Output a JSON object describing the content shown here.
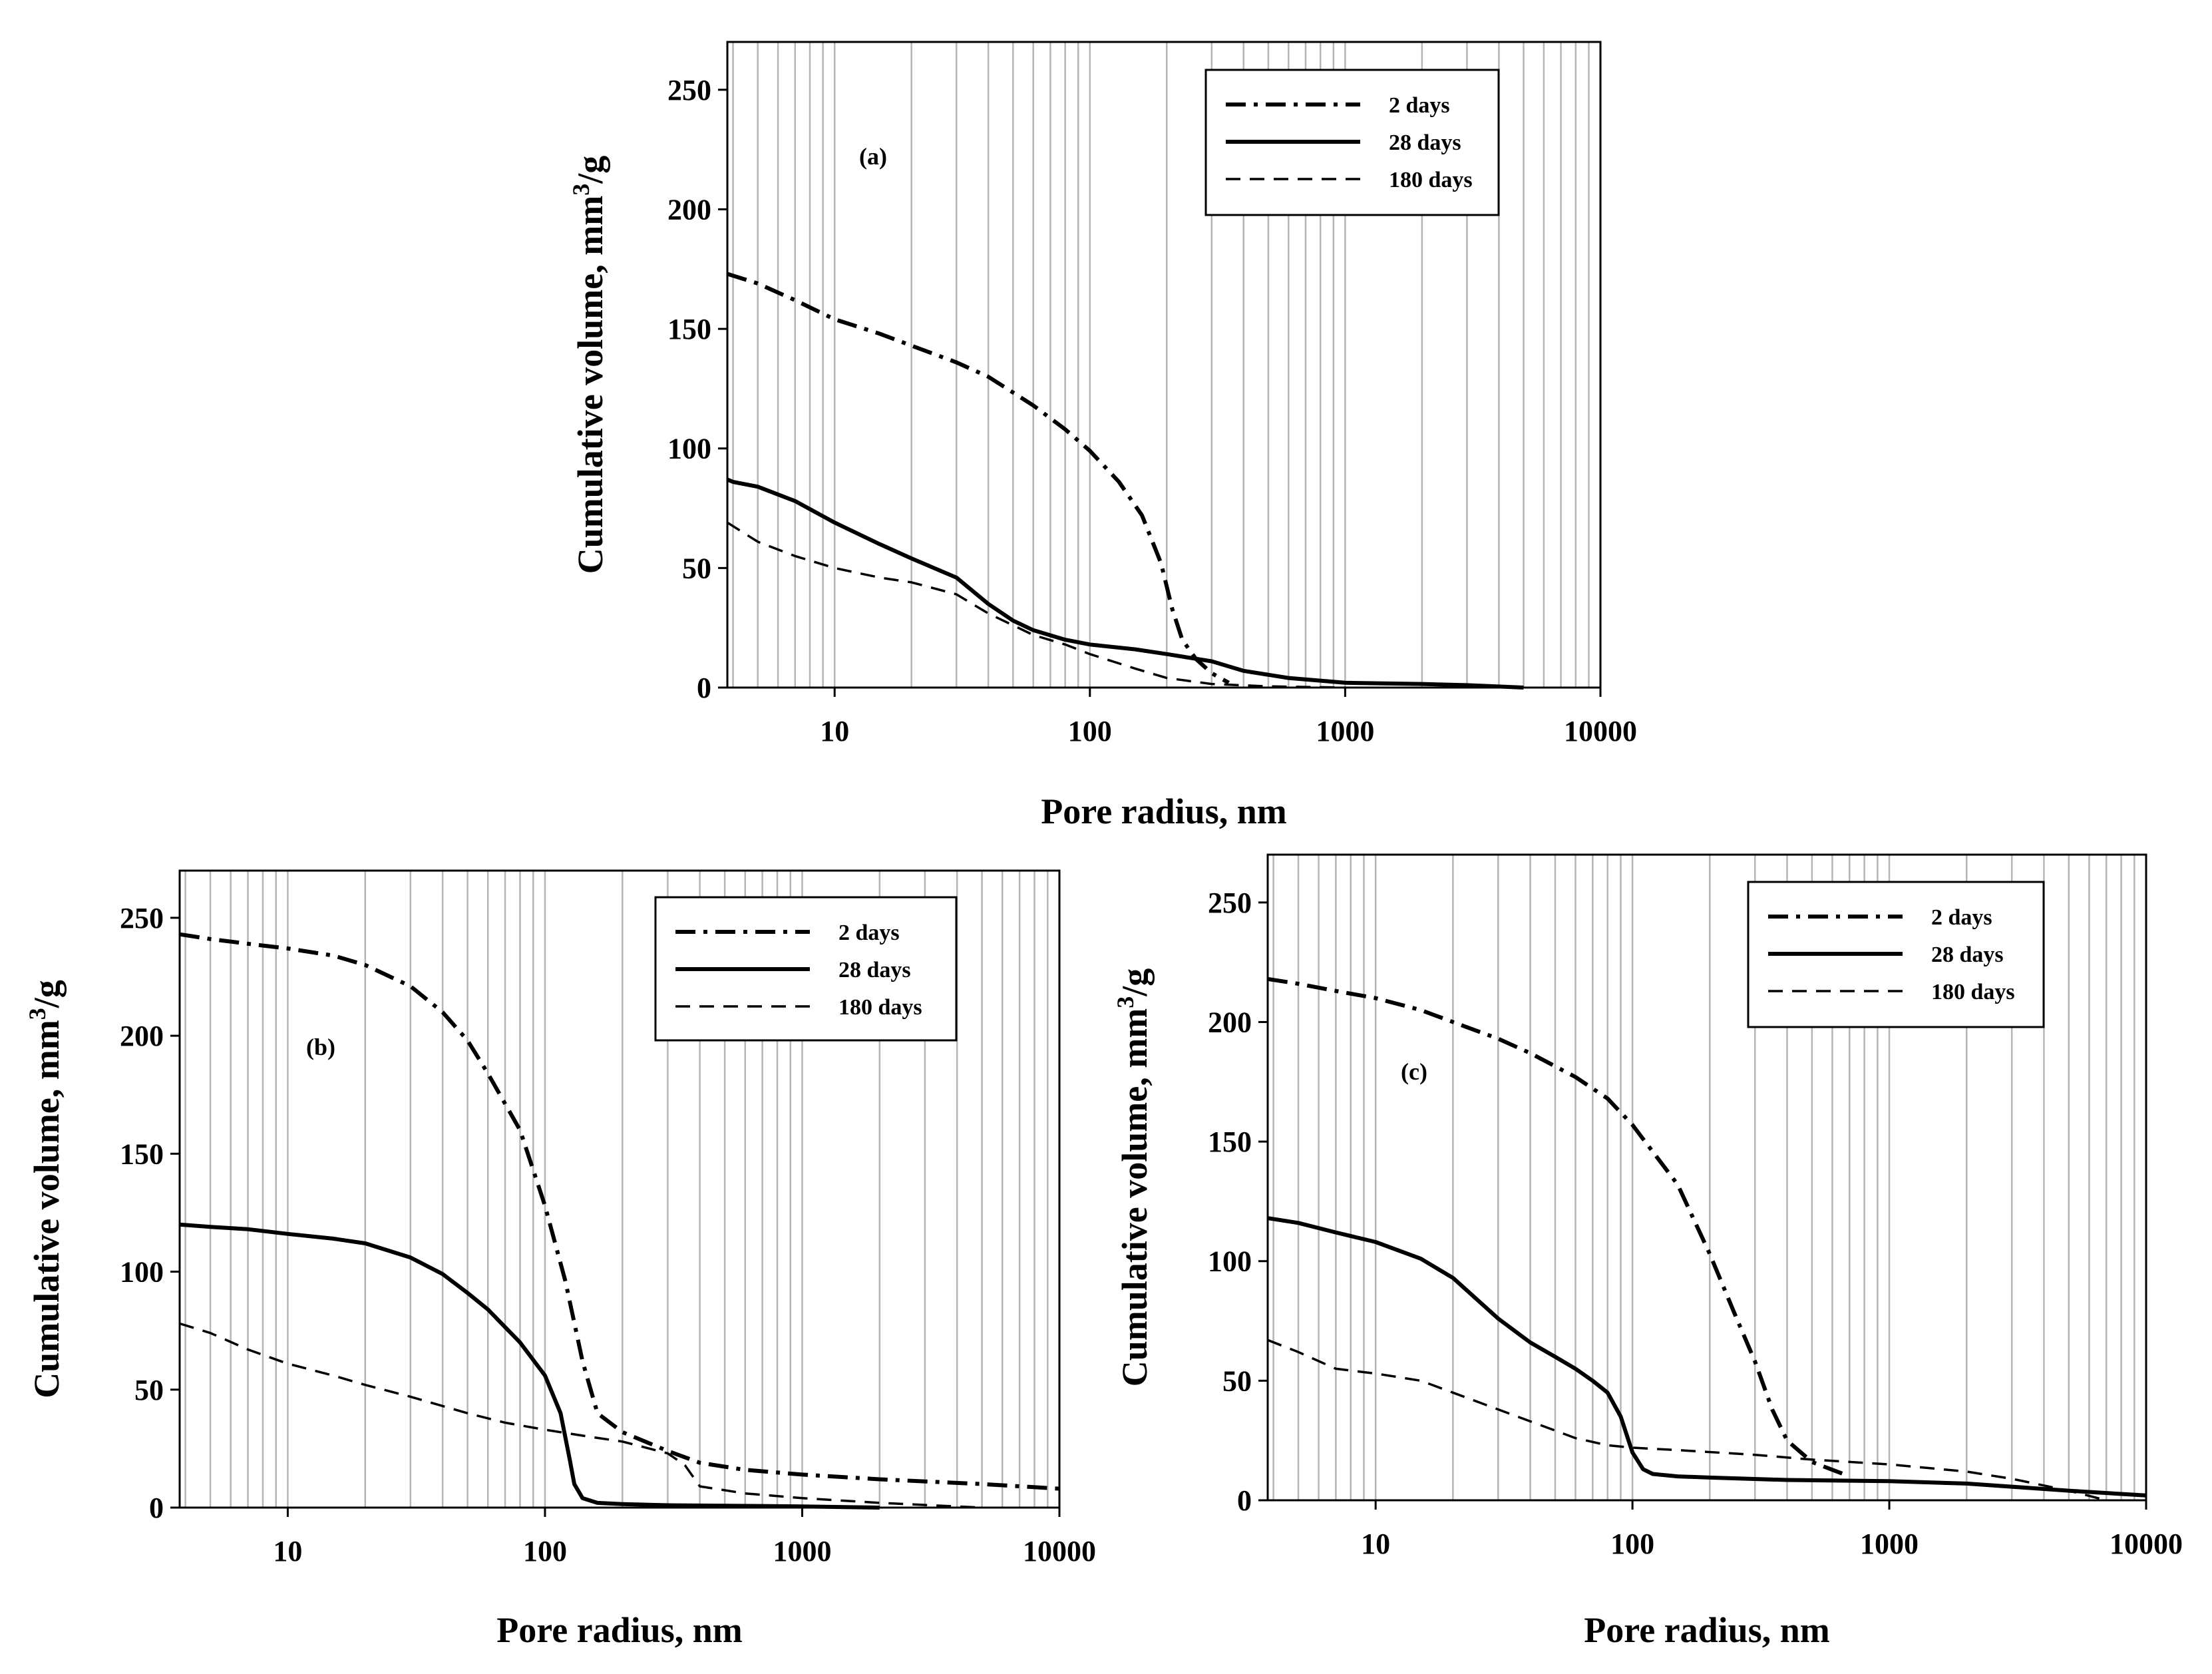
{
  "chart_data": [
    {
      "id": "a",
      "type": "line",
      "x_scale": "log",
      "panel_label": "(a)",
      "xlabel": "Pore radius, nm",
      "ylabel": "Cumulative volume, mm³/g",
      "ylabel_base": "Cumulative volume, mm",
      "ylabel_sup": "3",
      "ylabel_tail": "/g",
      "xlim": [
        3.8,
        10000
      ],
      "ylim": [
        0,
        270
      ],
      "x_ticks": [
        10,
        100,
        1000,
        10000
      ],
      "x_tick_labels": [
        "10",
        "100",
        "1000",
        "10000"
      ],
      "y_ticks": [
        0,
        50,
        100,
        150,
        200,
        250
      ],
      "y_tick_labels": [
        "0",
        "50",
        "100",
        "150",
        "200",
        "250"
      ],
      "grid": "vertical-log",
      "legend_position": "top-right",
      "series": [
        {
          "name": "2 days",
          "style": "dashdot",
          "x": [
            3.8,
            5,
            7,
            10,
            15,
            20,
            30,
            40,
            60,
            80,
            100,
            130,
            160,
            190,
            210,
            230,
            260,
            300,
            350
          ],
          "y": [
            173,
            169,
            162,
            154,
            148,
            143,
            136,
            130,
            118,
            108,
            99,
            86,
            72,
            52,
            33,
            20,
            12,
            6,
            2
          ]
        },
        {
          "name": "28 days",
          "style": "solid",
          "x": [
            3.8,
            4,
            5,
            7,
            10,
            15,
            20,
            30,
            40,
            50,
            60,
            80,
            100,
            150,
            200,
            300,
            400,
            600,
            1000,
            2000,
            3000,
            5000
          ],
          "y": [
            87,
            86,
            84,
            78,
            69,
            60,
            54,
            46,
            35,
            28,
            24,
            20,
            18,
            16,
            14,
            11,
            7,
            4,
            2,
            1.5,
            1,
            0
          ]
        },
        {
          "name": "180 days",
          "style": "dashed",
          "x": [
            3.8,
            5,
            7,
            10,
            15,
            20,
            30,
            40,
            60,
            80,
            100,
            150,
            200,
            300,
            500,
            1000
          ],
          "y": [
            69,
            61,
            55,
            50,
            46,
            44,
            39,
            31,
            22,
            18,
            14,
            8,
            4,
            1.5,
            0.5,
            0
          ]
        }
      ]
    },
    {
      "id": "b",
      "type": "line",
      "x_scale": "log",
      "panel_label": "(b)",
      "xlabel": "Pore radius, nm",
      "ylabel": "Cumulative volume, mm³/g",
      "ylabel_base": "Cumulative volume, mm",
      "ylabel_sup": "3",
      "ylabel_tail": "/g",
      "xlim": [
        3.8,
        10000
      ],
      "ylim": [
        0,
        270
      ],
      "x_ticks": [
        10,
        100,
        1000,
        10000
      ],
      "x_tick_labels": [
        "10",
        "100",
        "1000",
        "10000"
      ],
      "y_ticks": [
        0,
        50,
        100,
        150,
        200,
        250
      ],
      "y_tick_labels": [
        "0",
        "50",
        "100",
        "150",
        "200",
        "250"
      ],
      "grid": "vertical-log",
      "legend_position": "top-right",
      "series": [
        {
          "name": "2 days",
          "style": "dashdot",
          "x": [
            3.8,
            5,
            7,
            10,
            15,
            20,
            30,
            40,
            50,
            60,
            80,
            100,
            120,
            140,
            160,
            200,
            300,
            400,
            600,
            1000,
            2000,
            5000,
            10000
          ],
          "y": [
            243,
            241,
            239,
            237,
            234,
            230,
            221,
            210,
            198,
            184,
            160,
            128,
            96,
            62,
            40,
            32,
            24,
            19,
            16,
            14,
            12,
            10,
            8
          ]
        },
        {
          "name": "28 days",
          "style": "solid",
          "x": [
            3.8,
            5,
            7,
            10,
            15,
            20,
            30,
            40,
            50,
            60,
            80,
            100,
            115,
            125,
            130,
            140,
            160,
            200,
            300,
            1000,
            2000
          ],
          "y": [
            120,
            119,
            118,
            116,
            114,
            112,
            106,
            99,
            91,
            84,
            70,
            56,
            40,
            20,
            10,
            4,
            2,
            1.5,
            1,
            0.5,
            0
          ]
        },
        {
          "name": "180 days",
          "style": "dashed",
          "x": [
            3.8,
            5,
            7,
            10,
            15,
            20,
            30,
            50,
            70,
            100,
            150,
            200,
            300,
            350,
            400,
            600,
            1000,
            2000,
            5000
          ],
          "y": [
            78,
            74,
            67,
            61,
            56,
            52,
            47,
            40,
            36,
            33,
            30,
            28,
            23,
            18,
            9,
            6,
            4,
            2,
            0
          ]
        }
      ]
    },
    {
      "id": "c",
      "type": "line",
      "x_scale": "log",
      "panel_label": "(c)",
      "xlabel": "Pore radius, nm",
      "ylabel": "Cumulative volume, mm³/g",
      "ylabel_base": "Cumulative volume, mm",
      "ylabel_sup": "3",
      "ylabel_tail": "/g",
      "xlim": [
        3.8,
        10000
      ],
      "ylim": [
        0,
        270
      ],
      "x_ticks": [
        10,
        100,
        1000,
        10000
      ],
      "x_tick_labels": [
        "10",
        "100",
        "1000",
        "10000"
      ],
      "y_ticks": [
        0,
        50,
        100,
        150,
        200,
        250
      ],
      "y_tick_labels": [
        "0",
        "50",
        "100",
        "150",
        "200",
        "250"
      ],
      "grid": "vertical-log",
      "legend_position": "top-right",
      "series": [
        {
          "name": "2 days",
          "style": "dashdot",
          "x": [
            3.8,
            5,
            7,
            10,
            15,
            20,
            30,
            40,
            60,
            80,
            100,
            150,
            200,
            250,
            300,
            350,
            400,
            500,
            700
          ],
          "y": [
            218,
            216,
            213,
            210,
            205,
            200,
            193,
            187,
            177,
            168,
            157,
            132,
            103,
            78,
            58,
            38,
            25,
            16,
            10
          ]
        },
        {
          "name": "28 days",
          "style": "solid",
          "x": [
            3.8,
            5,
            7,
            10,
            15,
            20,
            30,
            40,
            50,
            60,
            70,
            80,
            90,
            100,
            110,
            120,
            150,
            200,
            400,
            1000,
            2000,
            5000,
            10000
          ],
          "y": [
            118,
            116,
            112,
            108,
            101,
            93,
            76,
            66,
            60,
            55,
            50,
            45,
            35,
            20,
            13,
            11,
            10,
            9.5,
            8.5,
            8,
            7,
            4,
            2
          ]
        },
        {
          "name": "180 days",
          "style": "dashed",
          "x": [
            3.8,
            5,
            7,
            10,
            15,
            20,
            30,
            40,
            60,
            80,
            100,
            150,
            300,
            500,
            1000,
            2000,
            3000,
            5000,
            7000
          ],
          "y": [
            67,
            62,
            55,
            53,
            50,
            45,
            38,
            33,
            26,
            23,
            22,
            21,
            19,
            17,
            15,
            12,
            9,
            4,
            0
          ]
        }
      ]
    }
  ]
}
